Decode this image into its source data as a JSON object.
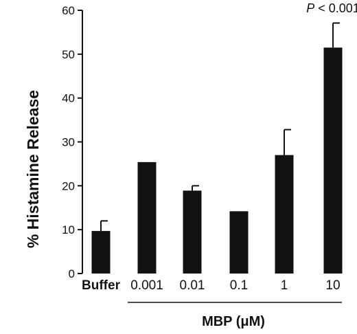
{
  "chart_data": {
    "type": "bar",
    "categories": [
      "Buffer",
      "0.001",
      "0.01",
      "0.1",
      "1",
      "10"
    ],
    "values": [
      9.7,
      25.4,
      18.9,
      14.2,
      27.0,
      51.5
    ],
    "error_bars": [
      2.3,
      null,
      1.1,
      null,
      5.8,
      5.6
    ],
    "ylabel": "% Histamine Release",
    "xlabel": "MBP (μM)",
    "yticks": [
      0,
      10,
      20,
      30,
      40,
      50,
      60
    ],
    "ylim": [
      0,
      60
    ],
    "annotation": {
      "prefix": "P",
      "rest": " < 0.001",
      "category": "10"
    },
    "bar_color": "#111111",
    "grid": false,
    "legend": "none"
  }
}
